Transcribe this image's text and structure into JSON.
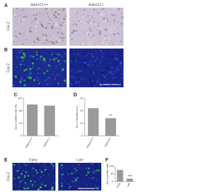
{
  "figure": {
    "A": {
      "label": "A",
      "columns": [
        "Adam11+/+",
        "Adam11-/-"
      ],
      "row_label": "Cox-2"
    },
    "B": {
      "label": "B",
      "row_label": "Cox-2"
    },
    "E": {
      "label": "E",
      "columns": [
        "Early",
        "Late"
      ],
      "row_label": "Cox-2"
    }
  },
  "chart_data": [
    {
      "type": "bar",
      "label": "C",
      "ylabel": "Cox-2 positive cells (%)",
      "categories": [
        "Adam11+/+",
        "Adam11-/-"
      ],
      "values": [
        100,
        96
      ],
      "color": "#9a9a9a",
      "ylim": [
        0,
        120
      ],
      "yticks": [
        0,
        40,
        80,
        120
      ]
    },
    {
      "type": "bar",
      "label": "D",
      "ylabel": "Cox-2 intensity (a.u.)",
      "categories": [
        "Adam11+/+",
        "Adam11-/-"
      ],
      "values": [
        22,
        14
      ],
      "color": "#9a9a9a",
      "ylim": [
        0,
        30
      ],
      "yticks": [
        0,
        10,
        20,
        30
      ],
      "annotation": "**"
    },
    {
      "type": "bar",
      "label": "F",
      "ylabel": "Cox-2 positive cells",
      "categories": [
        "Early",
        "Late"
      ],
      "values": [
        75,
        18
      ],
      "color": "#9a9a9a",
      "ylim": [
        0,
        100
      ],
      "yticks": [
        0,
        50,
        100
      ],
      "annotation": "***"
    }
  ]
}
